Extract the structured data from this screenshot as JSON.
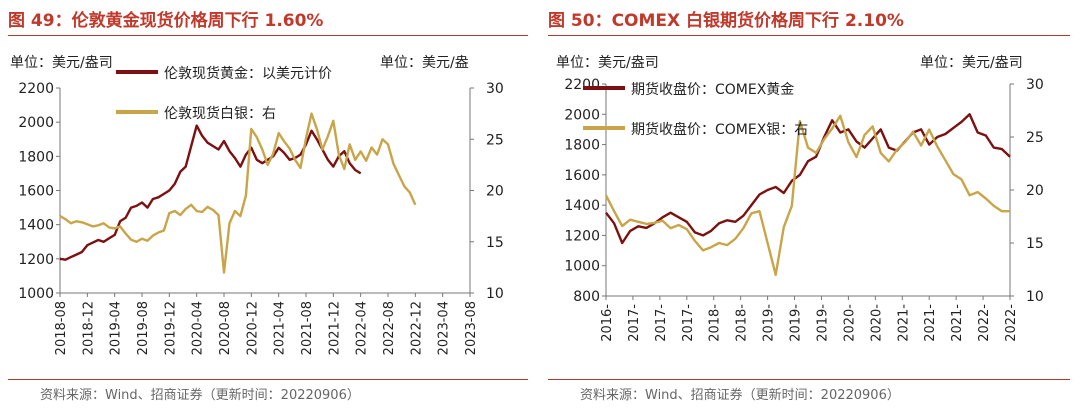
{
  "panels": [
    {
      "title": "图 49：伦敦黄金现货价格周下行 1.60%",
      "source": "资料来源：Wind、招商证券（更新时间：20220906）",
      "chart_data": {
        "type": "line",
        "unit_left": "单位：美元/盎司",
        "unit_right": "单位：美元/盎",
        "legend": [
          "伦敦现货黄金：以美元计价",
          "伦敦现货白银：右"
        ],
        "x_ticks": [
          "2018-08",
          "2018-12",
          "2019-04",
          "2019-08",
          "2019-12",
          "2020-04",
          "2020-08",
          "2020-12",
          "2021-04",
          "2021-08",
          "2021-12",
          "2022-04",
          "2022-08",
          "2022-12",
          "2023-04",
          "2023-08"
        ],
        "x_range": [
          0,
          15
        ],
        "y_left": {
          "ticks": [
            1000,
            1200,
            1400,
            1600,
            1800,
            2000,
            2200
          ],
          "range": [
            1000,
            2200
          ]
        },
        "y_right": {
          "ticks": [
            10,
            15,
            20,
            25,
            30
          ],
          "range": [
            10,
            30
          ]
        },
        "grid": false,
        "legend_position": "top-left",
        "series": [
          {
            "name": "伦敦现货黄金：以美元计价",
            "axis": "left",
            "color": "#7b1111",
            "x": [
              0,
              0.2,
              0.4,
              0.6,
              0.8,
              1.0,
              1.2,
              1.4,
              1.6,
              1.8,
              2.0,
              2.2,
              2.4,
              2.6,
              2.8,
              3.0,
              3.2,
              3.4,
              3.6,
              3.8,
              4.0,
              4.2,
              4.4,
              4.6,
              4.8,
              5.0,
              5.2,
              5.4,
              5.6,
              5.8,
              6.0,
              6.2,
              6.4,
              6.6,
              6.8,
              7.0,
              7.2,
              7.4,
              7.6,
              7.8,
              8.0,
              8.2,
              8.4,
              8.6,
              8.8,
              9.0,
              9.2,
              9.4,
              9.6,
              9.8,
              10.0,
              10.2,
              10.4,
              10.6,
              10.8,
              11.0,
              11.2,
              11.4,
              11.6,
              11.8,
              12.0,
              12.2,
              12.4,
              12.6,
              12.8,
              13.0
            ],
            "values": [
              1200,
              1195,
              1210,
              1225,
              1240,
              1280,
              1295,
              1310,
              1300,
              1320,
              1340,
              1420,
              1440,
              1500,
              1510,
              1530,
              1500,
              1550,
              1560,
              1580,
              1600,
              1640,
              1710,
              1740,
              1860,
              1980,
              1920,
              1880,
              1860,
              1840,
              1890,
              1830,
              1790,
              1740,
              1810,
              1850,
              1780,
              1760,
              1780,
              1800,
              1850,
              1820,
              1780,
              1790,
              1810,
              1870,
              1950,
              1900,
              1840,
              1780,
              1740,
              1800,
              1830,
              1760,
              1720,
              1700,
              null,
              null,
              null,
              null,
              null,
              null,
              null,
              null,
              null,
              null
            ]
          },
          {
            "name": "伦敦现货白银：右",
            "axis": "right",
            "color": "#c9a54a",
            "x": [
              0,
              0.2,
              0.4,
              0.6,
              0.8,
              1.0,
              1.2,
              1.4,
              1.6,
              1.8,
              2.0,
              2.2,
              2.4,
              2.6,
              2.8,
              3.0,
              3.2,
              3.4,
              3.6,
              3.8,
              4.0,
              4.2,
              4.4,
              4.6,
              4.8,
              5.0,
              5.2,
              5.4,
              5.6,
              5.8,
              6.0,
              6.2,
              6.4,
              6.6,
              6.8,
              7.0,
              7.2,
              7.4,
              7.6,
              7.8,
              8.0,
              8.2,
              8.4,
              8.6,
              8.8,
              9.0,
              9.2,
              9.4,
              9.6,
              9.8,
              10.0,
              10.2,
              10.4,
              10.6,
              10.8,
              11.0,
              11.2,
              11.4,
              11.6,
              11.8,
              12.0,
              12.2,
              12.4,
              12.6,
              12.8,
              13.0
            ],
            "values": [
              17.5,
              17.2,
              16.8,
              17.0,
              16.9,
              16.7,
              16.5,
              16.6,
              16.8,
              16.4,
              16.3,
              16.5,
              15.8,
              15.2,
              15.0,
              15.3,
              15.1,
              15.6,
              15.9,
              16.1,
              17.8,
              18.0,
              17.6,
              18.2,
              18.6,
              18.0,
              17.9,
              18.4,
              18.1,
              17.6,
              12.0,
              16.8,
              18.0,
              17.5,
              19.5,
              26.0,
              25.2,
              24.0,
              22.5,
              23.6,
              25.6,
              24.8,
              24.1,
              23.0,
              22.2,
              25.1,
              27.5,
              26.0,
              24.0,
              25.3,
              26.8,
              23.5,
              22.1,
              24.5,
              23.0,
              23.8,
              22.9,
              24.2,
              23.5,
              25.0,
              24.5,
              22.6,
              21.5,
              20.4,
              19.8,
              18.6
            ]
          }
        ]
      }
    },
    {
      "title": "图 50：COMEX 白银期货价格周下行 2.10%",
      "source": "资料来源：Wind、招商证券（更新时间：20220906）",
      "chart_data": {
        "type": "line",
        "unit_left": "单位：美元/盎司",
        "unit_right": "单位：美元/盎司",
        "legend": [
          "期货收盘价：COMEX黄金",
          "期货收盘价：COMEX银：右"
        ],
        "x_ticks": [
          "2016-",
          "2017-",
          "2017-",
          "2017-",
          "2018-",
          "2018-",
          "2019-",
          "2019-",
          "2019-",
          "2020-",
          "2020-",
          "2021-",
          "2021-",
          "2021-",
          "2022-",
          "2022-"
        ],
        "x_range": [
          0,
          15
        ],
        "y_left": {
          "ticks": [
            800,
            1000,
            1200,
            1400,
            1600,
            1800,
            2000,
            2200
          ],
          "range": [
            800,
            2200
          ]
        },
        "y_right": {
          "ticks": [
            10,
            15,
            20,
            25,
            30
          ],
          "range": [
            10,
            30
          ]
        },
        "grid": false,
        "legend_position": "top-left",
        "series": [
          {
            "name": "期货收盘价：COMEX黄金",
            "axis": "left",
            "color": "#7b1111",
            "x": [
              0,
              0.3,
              0.6,
              0.9,
              1.2,
              1.5,
              1.8,
              2.1,
              2.4,
              2.7,
              3.0,
              3.3,
              3.6,
              3.9,
              4.2,
              4.5,
              4.8,
              5.1,
              5.4,
              5.7,
              6.0,
              6.3,
              6.6,
              6.9,
              7.2,
              7.5,
              7.8,
              8.1,
              8.4,
              8.7,
              9.0,
              9.3,
              9.6,
              9.9,
              10.2,
              10.5,
              10.8,
              11.1,
              11.4,
              11.7,
              12.0,
              12.3,
              12.6,
              12.9,
              13.2,
              13.5,
              13.8,
              14.1,
              14.4,
              14.7,
              15.0
            ],
            "values": [
              1350,
              1280,
              1150,
              1230,
              1260,
              1250,
              1280,
              1320,
              1350,
              1320,
              1290,
              1220,
              1200,
              1230,
              1280,
              1300,
              1290,
              1330,
              1400,
              1470,
              1500,
              1520,
              1480,
              1560,
              1600,
              1690,
              1720,
              1850,
              1960,
              1880,
              1900,
              1820,
              1780,
              1840,
              1900,
              1780,
              1760,
              1820,
              1880,
              1900,
              1800,
              1850,
              1870,
              1910,
              1950,
              2000,
              1880,
              1860,
              1780,
              1770,
              1720
            ]
          },
          {
            "name": "期货收盘价：COMEX银：右",
            "axis": "right",
            "color": "#c9a54a",
            "x": [
              0,
              0.3,
              0.6,
              0.9,
              1.2,
              1.5,
              1.8,
              2.1,
              2.4,
              2.7,
              3.0,
              3.3,
              3.6,
              3.9,
              4.2,
              4.5,
              4.8,
              5.1,
              5.4,
              5.7,
              6.0,
              6.3,
              6.6,
              6.9,
              7.2,
              7.5,
              7.8,
              8.1,
              8.4,
              8.7,
              9.0,
              9.3,
              9.6,
              9.9,
              10.2,
              10.5,
              10.8,
              11.1,
              11.4,
              11.7,
              12.0,
              12.3,
              12.6,
              12.9,
              13.2,
              13.5,
              13.8,
              14.1,
              14.4,
              14.7,
              15.0
            ],
            "values": [
              19.5,
              18.0,
              16.6,
              17.2,
              17.0,
              16.8,
              16.9,
              17.1,
              16.4,
              16.7,
              16.3,
              15.2,
              14.3,
              14.6,
              15.0,
              14.8,
              15.4,
              16.4,
              17.8,
              18.0,
              15.0,
              12.0,
              16.5,
              18.5,
              26.5,
              24.0,
              23.5,
              24.8,
              25.8,
              27.0,
              24.5,
              23.1,
              25.2,
              26.0,
              23.5,
              22.7,
              23.8,
              24.5,
              25.5,
              24.2,
              25.7,
              24.1,
              22.8,
              21.5,
              21.0,
              19.5,
              19.8,
              19.2,
              18.5,
              18.0,
              18.0
            ]
          }
        ]
      }
    }
  ]
}
